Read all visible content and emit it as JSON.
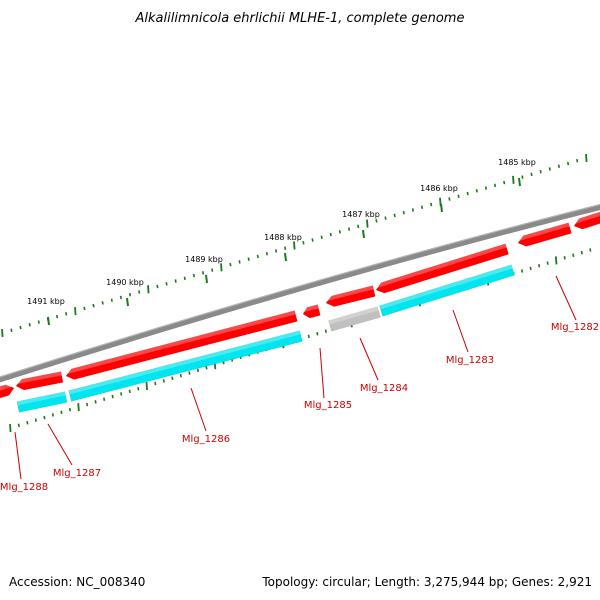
{
  "title": "Alkalilimnicola ehrlichii MLHE-1, complete genome",
  "footer": {
    "accession": "Accession: NC_008340",
    "topology": "Topology: circular; Length: 3,275,944 bp; Genes: 2,921"
  },
  "colors": {
    "backbone": "#808080",
    "forward_gene": "#ff0000",
    "reverse_gene": "#00e5ee",
    "pseudo_gene": "#c0c0c0",
    "tick": "#1a7a1a",
    "label_line": "#cc0000"
  },
  "scale": {
    "unit": "kbp",
    "marks": [
      {
        "value": 1485,
        "label": "1485 kbp"
      },
      {
        "value": 1486,
        "label": "1486 kbp"
      },
      {
        "value": 1487,
        "label": "1487 kbp"
      },
      {
        "value": 1488,
        "label": "1488 kbp"
      },
      {
        "value": 1489,
        "label": "1489 kbp"
      },
      {
        "value": 1490,
        "label": "1490 kbp"
      },
      {
        "value": 1491,
        "label": "1491 kbp"
      }
    ]
  },
  "genes": [
    {
      "name": "Mlg_1282",
      "strand": "forward"
    },
    {
      "name": "Mlg_1283",
      "strand": "reverse"
    },
    {
      "name": "Mlg_1284",
      "strand": "pseudo"
    },
    {
      "name": "Mlg_1285",
      "strand": "forward"
    },
    {
      "name": "Mlg_1286",
      "strand": "reverse"
    },
    {
      "name": "Mlg_1287",
      "strand": "reverse"
    },
    {
      "name": "Mlg_1288",
      "strand": "forward"
    }
  ]
}
